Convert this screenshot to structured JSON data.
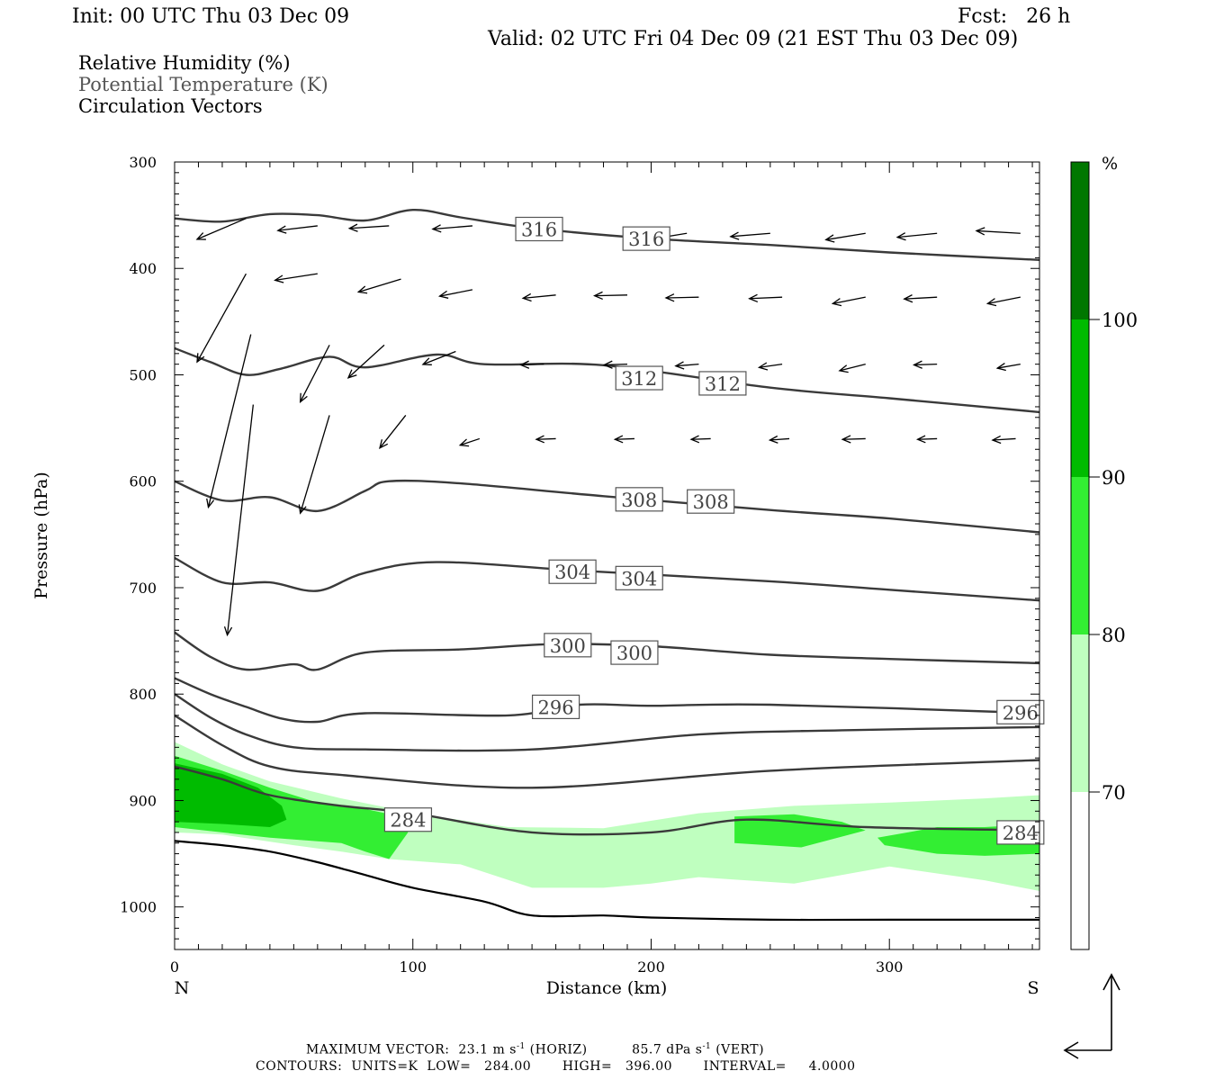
{
  "header": {
    "init": "Init: 00 UTC Thu 03 Dec 09",
    "fcst": "Fcst:   26 h",
    "valid": "Valid: 02 UTC Fri 04 Dec 09 (21 EST Thu 03 Dec 09)"
  },
  "fields": [
    {
      "label": "Relative Humidity (%)",
      "color": "#000000"
    },
    {
      "label": "Potential Temperature (K)",
      "color": "#555555"
    },
    {
      "label": "Circulation Vectors",
      "color": "#000000"
    }
  ],
  "footer": {
    "max_vector_label": "MAXIMUM VECTOR:",
    "max_horiz": "23.1 m s",
    "max_horiz_unit": "(HORIZ)",
    "max_vert": "85.7 dPa s",
    "max_vert_unit": "(VERT)",
    "exponent": "-1",
    "contours_label": "CONTOURS:",
    "units": "UNITS=K",
    "low": "LOW=   284.00",
    "high": "HIGH=   396.00",
    "interval": "INTERVAL=     4.0000"
  },
  "chart_data": {
    "type": "cross-section",
    "xlabel": "Distance (km)",
    "ylabel": "Pressure (hPa)",
    "xlim": [
      0,
      363
    ],
    "ylim": [
      1040,
      300
    ],
    "y_log": false,
    "x_ticks": [
      0,
      100,
      200,
      300
    ],
    "x_tick_labels": [
      "0",
      "100",
      "200",
      "300"
    ],
    "y_ticks": [
      300,
      400,
      500,
      600,
      700,
      800,
      900,
      1000
    ],
    "y_tick_labels": [
      "300",
      "400",
      "500",
      "600",
      "700",
      "800",
      "900",
      "1000"
    ],
    "end_labels": {
      "left": "N",
      "right": "S"
    },
    "colorbar": {
      "unit": "%",
      "levels": [
        70,
        80,
        90,
        100
      ],
      "level_labels": [
        "70",
        "80",
        "90",
        "100"
      ],
      "colors": [
        "#ffffff",
        "#bfffbf",
        "#33ee33",
        "#00bb00",
        "#007700"
      ]
    },
    "theta_contours": [
      {
        "theta": 316,
        "points": [
          [
            0,
            353
          ],
          [
            20,
            356
          ],
          [
            40,
            349
          ],
          [
            60,
            350
          ],
          [
            80,
            355
          ],
          [
            100,
            345
          ],
          [
            120,
            352
          ],
          [
            150,
            362
          ],
          [
            200,
            372
          ],
          [
            250,
            378
          ],
          [
            300,
            385
          ],
          [
            363,
            392
          ]
        ],
        "labels": [
          {
            "text": "316",
            "x": 153,
            "p": 363
          },
          {
            "text": "316",
            "x": 198,
            "p": 372
          }
        ]
      },
      {
        "theta": 312,
        "points": [
          [
            0,
            475
          ],
          [
            15,
            488
          ],
          [
            30,
            500
          ],
          [
            45,
            494
          ],
          [
            65,
            483
          ],
          [
            80,
            493
          ],
          [
            110,
            481
          ],
          [
            130,
            490
          ],
          [
            180,
            491
          ],
          [
            250,
            512
          ],
          [
            300,
            522
          ],
          [
            363,
            535
          ]
        ],
        "labels": [
          {
            "text": "312",
            "x": 195,
            "p": 503
          },
          {
            "text": "312",
            "x": 230,
            "p": 508
          }
        ]
      },
      {
        "theta": 308,
        "points": [
          [
            0,
            600
          ],
          [
            20,
            618
          ],
          [
            40,
            615
          ],
          [
            60,
            628
          ],
          [
            80,
            609
          ],
          [
            90,
            600
          ],
          [
            120,
            602
          ],
          [
            180,
            614
          ],
          [
            250,
            627
          ],
          [
            300,
            635
          ],
          [
            363,
            648
          ]
        ],
        "labels": [
          {
            "text": "308",
            "x": 195,
            "p": 617
          },
          {
            "text": "308",
            "x": 225,
            "p": 619
          }
        ]
      },
      {
        "theta": 304,
        "points": [
          [
            0,
            672
          ],
          [
            20,
            695
          ],
          [
            40,
            695
          ],
          [
            60,
            703
          ],
          [
            80,
            686
          ],
          [
            110,
            676
          ],
          [
            170,
            684
          ],
          [
            250,
            694
          ],
          [
            300,
            702
          ],
          [
            363,
            712
          ]
        ],
        "labels": [
          {
            "text": "304",
            "x": 167,
            "p": 685
          },
          {
            "text": "304",
            "x": 195,
            "p": 691
          }
        ]
      },
      {
        "theta": 300,
        "points": [
          [
            0,
            742
          ],
          [
            15,
            765
          ],
          [
            30,
            777
          ],
          [
            50,
            772
          ],
          [
            60,
            777
          ],
          [
            80,
            761
          ],
          [
            120,
            758
          ],
          [
            160,
            753
          ],
          [
            200,
            755
          ],
          [
            250,
            763
          ],
          [
            300,
            767
          ],
          [
            363,
            771
          ]
        ],
        "labels": [
          {
            "text": "300",
            "x": 165,
            "p": 754
          },
          {
            "text": "300",
            "x": 193,
            "p": 761
          }
        ]
      },
      {
        "theta": 296,
        "points": [
          [
            0,
            785
          ],
          [
            15,
            800
          ],
          [
            30,
            812
          ],
          [
            45,
            823
          ],
          [
            60,
            826
          ],
          [
            80,
            818
          ],
          [
            140,
            820
          ],
          [
            170,
            810
          ],
          [
            200,
            811
          ],
          [
            250,
            810
          ],
          [
            363,
            818
          ]
        ],
        "labels": [
          {
            "text": "296",
            "x": 160,
            "p": 812
          },
          {
            "text": "296",
            "x": 355,
            "p": 817
          }
        ]
      },
      {
        "theta": 292,
        "points": [
          [
            0,
            800
          ],
          [
            15,
            822
          ],
          [
            30,
            838
          ],
          [
            50,
            850
          ],
          [
            80,
            852
          ],
          [
            150,
            852
          ],
          [
            220,
            838
          ],
          [
            280,
            834
          ],
          [
            363,
            831
          ]
        ],
        "labels": []
      },
      {
        "theta": 288,
        "points": [
          [
            0,
            820
          ],
          [
            20,
            848
          ],
          [
            40,
            868
          ],
          [
            70,
            876
          ],
          [
            150,
            888
          ],
          [
            250,
            872
          ],
          [
            363,
            862
          ]
        ],
        "labels": []
      },
      {
        "theta": 284,
        "points": [
          [
            0,
            868
          ],
          [
            20,
            880
          ],
          [
            40,
            895
          ],
          [
            70,
            905
          ],
          [
            100,
            912
          ],
          [
            150,
            930
          ],
          [
            200,
            930
          ],
          [
            240,
            918
          ],
          [
            290,
            925
          ],
          [
            363,
            928
          ]
        ],
        "labels": [
          {
            "text": "284",
            "x": 98,
            "p": 918
          },
          {
            "text": "284",
            "x": 355,
            "p": 930
          }
        ]
      }
    ],
    "terrain": [
      [
        0,
        938
      ],
      [
        20,
        942
      ],
      [
        40,
        948
      ],
      [
        60,
        958
      ],
      [
        80,
        970
      ],
      [
        100,
        982
      ],
      [
        130,
        995
      ],
      [
        150,
        1008
      ],
      [
        180,
        1008
      ],
      [
        200,
        1010
      ],
      [
        250,
        1012
      ],
      [
        300,
        1012
      ],
      [
        363,
        1012
      ]
    ],
    "rh_regions": [
      {
        "level": 70,
        "points": [
          [
            0,
            845
          ],
          [
            20,
            866
          ],
          [
            40,
            882
          ],
          [
            70,
            898
          ],
          [
            90,
            907
          ],
          [
            110,
            915
          ],
          [
            140,
            925
          ],
          [
            180,
            926
          ],
          [
            220,
            912
          ],
          [
            260,
            905
          ],
          [
            300,
            902
          ],
          [
            340,
            898
          ],
          [
            363,
            895
          ],
          [
            363,
            985
          ],
          [
            340,
            975
          ],
          [
            300,
            962
          ],
          [
            260,
            978
          ],
          [
            220,
            972
          ],
          [
            200,
            978
          ],
          [
            180,
            982
          ],
          [
            150,
            982
          ],
          [
            120,
            960
          ],
          [
            90,
            955
          ],
          [
            70,
            948
          ],
          [
            50,
            942
          ],
          [
            20,
            932
          ],
          [
            0,
            930
          ]
        ]
      },
      {
        "level": 80,
        "points": [
          [
            0,
            858
          ],
          [
            20,
            872
          ],
          [
            40,
            888
          ],
          [
            60,
            902
          ],
          [
            80,
            908
          ],
          [
            95,
            915
          ],
          [
            98,
            930
          ],
          [
            90,
            955
          ],
          [
            80,
            948
          ],
          [
            70,
            940
          ],
          [
            40,
            935
          ],
          [
            20,
            930
          ],
          [
            0,
            925
          ]
        ]
      },
      {
        "level": 80,
        "points": [
          [
            235,
            915
          ],
          [
            260,
            913
          ],
          [
            280,
            920
          ],
          [
            290,
            928
          ],
          [
            263,
            944
          ],
          [
            235,
            940
          ]
        ]
      },
      {
        "level": 80,
        "points": [
          [
            295,
            935
          ],
          [
            320,
            925
          ],
          [
            340,
            925
          ],
          [
            363,
            922
          ],
          [
            363,
            950
          ],
          [
            340,
            952
          ],
          [
            320,
            950
          ],
          [
            298,
            942
          ]
        ]
      },
      {
        "level": 90,
        "points": [
          [
            0,
            865
          ],
          [
            20,
            875
          ],
          [
            35,
            888
          ],
          [
            45,
            905
          ],
          [
            47,
            918
          ],
          [
            40,
            925
          ],
          [
            20,
            922
          ],
          [
            0,
            920
          ]
        ]
      }
    ],
    "vector_unit": {
      "horiz_ms": 23.1,
      "vert_dpas": 85.7
    },
    "vectors": [
      [
        30,
        353,
        -13.6,
        -5.8
      ],
      [
        60,
        360,
        -11.0,
        -1.3
      ],
      [
        90,
        360,
        -11.0,
        -0.7
      ],
      [
        125,
        360,
        -11.0,
        -0.9
      ],
      [
        215,
        367,
        -11.0,
        -1.8
      ],
      [
        250,
        367,
        -11.0,
        -0.9
      ],
      [
        290,
        367,
        -11.0,
        -1.8
      ],
      [
        320,
        367,
        -11.0,
        -1.1
      ],
      [
        355,
        367,
        -12.2,
        0.7
      ],
      [
        30,
        405,
        -13.6,
        -24.5
      ],
      [
        60,
        405,
        -11.8,
        -1.8
      ],
      [
        95,
        410,
        -11.8,
        -3.6
      ],
      [
        125,
        420,
        -9.1,
        -1.8
      ],
      [
        160,
        425,
        -9.1,
        -0.9
      ],
      [
        190,
        425,
        -9.1,
        -0.2
      ],
      [
        220,
        427,
        -9.1,
        -0.2
      ],
      [
        255,
        427,
        -9.1,
        -0.4
      ],
      [
        290,
        427,
        -9.1,
        -1.8
      ],
      [
        320,
        427,
        -9.1,
        -0.5
      ],
      [
        355,
        427,
        -9.1,
        -1.8
      ],
      [
        32,
        462,
        -11.8,
        -48.0
      ],
      [
        65,
        472,
        -8.1,
        -15.8
      ],
      [
        88,
        472,
        -10.0,
        -9.1
      ],
      [
        118,
        478,
        -9.1,
        -3.6
      ],
      [
        155,
        490,
        -6.4,
        -0.2
      ],
      [
        190,
        490,
        -6.4,
        -0.2
      ],
      [
        220,
        490,
        -6.4,
        -0.5
      ],
      [
        255,
        490,
        -6.4,
        -0.9
      ],
      [
        290,
        490,
        -7.2,
        -1.8
      ],
      [
        320,
        490,
        -6.4,
        -0.2
      ],
      [
        355,
        490,
        -6.4,
        -1.1
      ],
      [
        33,
        528,
        -7.2,
        -64.0
      ],
      [
        65,
        538,
        -8.1,
        -27.2
      ],
      [
        97,
        538,
        -7.2,
        -9.1
      ],
      [
        128,
        560,
        -5.4,
        -1.8
      ],
      [
        160,
        560,
        -5.4,
        -0.2
      ],
      [
        193,
        560,
        -5.4,
        -0.2
      ],
      [
        225,
        560,
        -5.4,
        -0.2
      ],
      [
        258,
        560,
        -5.4,
        -0.4
      ],
      [
        290,
        560,
        -6.4,
        -0.2
      ],
      [
        320,
        560,
        -5.4,
        -0.2
      ],
      [
        353,
        560,
        -6.4,
        -0.4
      ]
    ]
  }
}
